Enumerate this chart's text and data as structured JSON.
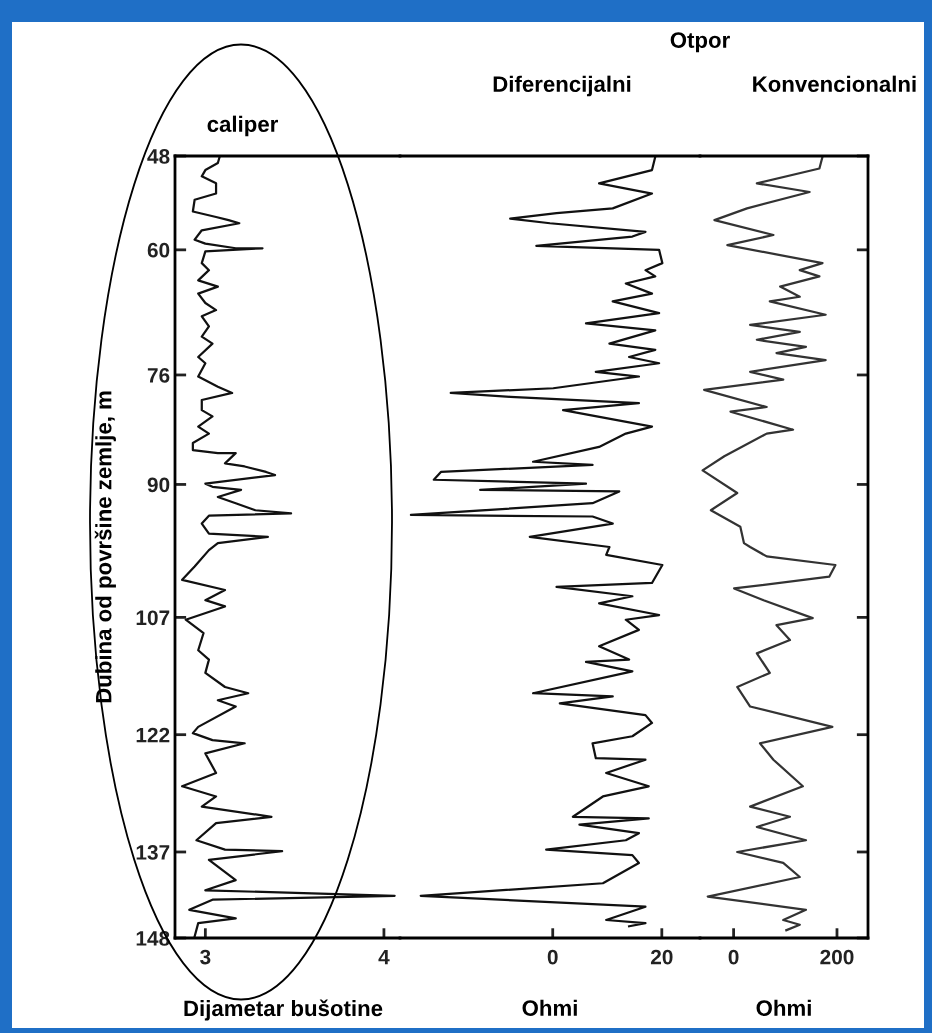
{
  "chart_data": [
    {
      "type": "line",
      "title": "caliper",
      "xlabel": "Dijametar bušotine",
      "ylabel": "Dubina od površine zemlje, m",
      "xlim": [
        2.83,
        4.09
      ],
      "xticks": [
        3,
        4
      ],
      "ylim": [
        148,
        48
      ],
      "yticks": [
        48,
        60,
        76,
        90,
        107,
        122,
        137,
        148
      ],
      "grid": false,
      "series": [
        {
          "color": "#111111",
          "x": [
            3.08,
            3.07,
            3.0,
            2.98,
            3.06,
            3.06,
            2.94,
            2.93,
            3.06,
            3.13,
            3.19,
            2.98,
            2.94,
            3.0,
            3.17,
            3.32,
            3.0,
            2.98,
            3.02,
            2.96,
            3.07,
            2.96,
            3.0,
            3.06,
            2.98,
            3.02,
            2.98,
            3.04,
            2.96,
            3.0,
            2.96,
            3.07,
            3.15,
            2.98,
            2.98,
            3.04,
            2.96,
            3.02,
            2.93,
            2.93,
            3.07,
            3.17,
            3.11,
            3.22,
            3.34,
            3.39,
            3.0,
            3.04,
            3.2,
            3.07,
            3.17,
            3.28,
            3.48,
            3.02,
            2.98,
            3.02,
            3.35,
            3.07,
            3.02,
            2.94,
            2.87,
            3.11,
            3.0,
            3.11,
            2.89,
            2.99,
            2.96,
            3.02,
            3.0,
            3.11,
            3.24,
            3.07,
            3.17,
            2.96,
            2.93,
            3.04,
            3.22,
            3.0,
            3.06,
            2.87,
            3.06,
            2.98,
            3.37,
            3.06,
            2.95,
            3.11,
            3.43,
            3.02,
            3.17,
            3.0,
            4.06,
            3.04,
            2.91,
            3.17,
            2.96,
            2.94
          ],
          "values": [
            48.1,
            48.9,
            49.8,
            50.6,
            51.5,
            52.8,
            53.6,
            55.1,
            55.8,
            56.2,
            56.6,
            57.5,
            58.7,
            59.2,
            59.8,
            59.8,
            60.2,
            61.7,
            62.6,
            63.9,
            64.7,
            65.6,
            66.8,
            67.7,
            68.5,
            69.8,
            71.1,
            72.0,
            73.7,
            74.5,
            76.2,
            77.5,
            78.3,
            79.2,
            80.5,
            81.3,
            82.6,
            83.5,
            84.7,
            85.6,
            86.0,
            86.0,
            87.3,
            87.7,
            88.4,
            88.8,
            89.9,
            90.3,
            90.7,
            91.6,
            92.4,
            93.3,
            93.7,
            94.0,
            95.0,
            96.3,
            96.7,
            97.5,
            98.4,
            100.5,
            102.2,
            103.5,
            104.8,
            105.6,
            107.3,
            109.0,
            111.2,
            112.4,
            114.1,
            115.9,
            116.7,
            117.6,
            118.4,
            121.0,
            121.8,
            122.7,
            123.1,
            124.4,
            126.9,
            128.6,
            129.9,
            131.2,
            132.5,
            133.3,
            135.5,
            136.7,
            136.9,
            138.0,
            140.6,
            141.9,
            142.6,
            143.1,
            144.4,
            145.5,
            146.1,
            147.8
          ]
        }
      ]
    },
    {
      "type": "line",
      "title": "Diferencijalni",
      "xlabel": "Ohmi",
      "xlim": [
        -28,
        27
      ],
      "xticks": [
        0,
        20
      ],
      "ylim": [
        148,
        48
      ],
      "yticks": [
        48,
        60,
        76,
        90,
        107,
        122,
        137,
        148
      ],
      "tick_labels": "x",
      "grid": false,
      "series": [
        {
          "color": "#111111",
          "x": [
            18.8,
            18.2,
            8.5,
            18.2,
            11.0,
            0.7,
            -7.8,
            -0.5,
            17.0,
            14.6,
            -3.0,
            19.5,
            20.1,
            17.0,
            18.8,
            13.4,
            18.2,
            11.0,
            19.5,
            6.1,
            18.8,
            10.4,
            18.8,
            14.0,
            19.5,
            7.9,
            15.8,
            0.1,
            -18.7,
            -7.8,
            15.8,
            1.9,
            18.2,
            13.4,
            8.5,
            -3.6,
            7.3,
            -20.5,
            -21.8,
            6.1,
            -13.3,
            12.2,
            7.3,
            -26.0,
            7.3,
            11.0,
            -4.2,
            10.4,
            9.8,
            20.1,
            18.2,
            0.7,
            14.6,
            8.5,
            19.5,
            13.4,
            15.8,
            8.5,
            14.0,
            6.1,
            14.6,
            -3.6,
            11.0,
            1.3,
            17.0,
            18.2,
            14.6,
            7.3,
            7.9,
            17.0,
            9.8,
            17.6,
            9.2,
            3.7,
            17.6,
            4.9,
            15.8,
            13.4,
            -1.2,
            14.6,
            15.8,
            9.2,
            -24.2,
            17.0,
            9.8,
            17.0,
            14.0
          ],
          "values": [
            48.1,
            49.8,
            51.5,
            52.8,
            54.7,
            55.3,
            56.0,
            56.6,
            57.7,
            58.3,
            59.5,
            60.0,
            61.7,
            62.6,
            63.4,
            64.3,
            65.6,
            66.6,
            68.1,
            69.4,
            70.3,
            72.0,
            72.8,
            73.7,
            74.5,
            75.6,
            76.2,
            77.7,
            78.3,
            78.8,
            79.6,
            80.5,
            82.6,
            83.5,
            85.2,
            87.1,
            87.5,
            88.4,
            89.4,
            89.9,
            90.7,
            90.9,
            92.4,
            93.9,
            94.1,
            95.0,
            96.7,
            98.0,
            99.0,
            100.3,
            102.6,
            103.1,
            104.3,
            105.2,
            106.7,
            107.3,
            108.6,
            110.7,
            112.4,
            112.7,
            113.9,
            116.7,
            117.1,
            118.0,
            119.5,
            120.5,
            122.2,
            123.1,
            125.0,
            125.2,
            126.9,
            128.6,
            129.9,
            132.5,
            132.7,
            133.5,
            134.6,
            135.5,
            136.7,
            137.4,
            138.4,
            141.0,
            142.6,
            144.0,
            145.7,
            146.1,
            146.5
          ]
        }
      ]
    },
    {
      "type": "line",
      "title": "Konvencionalni",
      "xlabel": "Ohmi",
      "annotations": [
        "Otpor"
      ],
      "xlim": [
        -65,
        260
      ],
      "xticks": [
        0,
        200
      ],
      "ylim": [
        148,
        48
      ],
      "yticks": [
        48,
        60,
        76,
        90,
        107,
        122,
        137,
        148
      ],
      "tick_labels": "x",
      "grid": false,
      "series": [
        {
          "color": "#333333",
          "x": [
            172,
            166,
            45,
            147,
            26,
            -37,
            77,
            -12,
            172,
            128,
            166,
            90,
            128,
            70,
            178,
            32,
            128,
            45,
            140,
            83,
            178,
            32,
            96,
            -57,
            64,
            -6,
            115,
            64,
            -18,
            -60,
            7,
            -44,
            13,
            20,
            32,
            64,
            197,
            185,
            1,
            58,
            153,
            83,
            109,
            45,
            70,
            7,
            32,
            191,
            51,
            77,
            134,
            32,
            109,
            45,
            140,
            7,
            96,
            128,
            -50,
            140,
            96,
            128,
            102
          ],
          "values": [
            48.1,
            49.6,
            51.5,
            52.6,
            54.7,
            56.2,
            58.1,
            59.4,
            61.7,
            62.6,
            63.4,
            64.7,
            66.0,
            66.6,
            68.3,
            69.6,
            70.5,
            71.5,
            72.4,
            73.2,
            74.1,
            75.6,
            76.6,
            77.9,
            80.1,
            80.7,
            83.0,
            83.5,
            86.4,
            88.2,
            91.1,
            93.3,
            95.4,
            97.5,
            98.0,
            99.2,
            100.3,
            101.8,
            103.3,
            104.8,
            107.1,
            108.0,
            109.9,
            111.6,
            114.1,
            115.9,
            118.4,
            121.0,
            123.1,
            125.2,
            128.6,
            131.2,
            132.5,
            133.8,
            135.5,
            137.0,
            138.4,
            140.2,
            142.7,
            144.4,
            145.7,
            146.3,
            147.0
          ]
        }
      ]
    }
  ]
}
